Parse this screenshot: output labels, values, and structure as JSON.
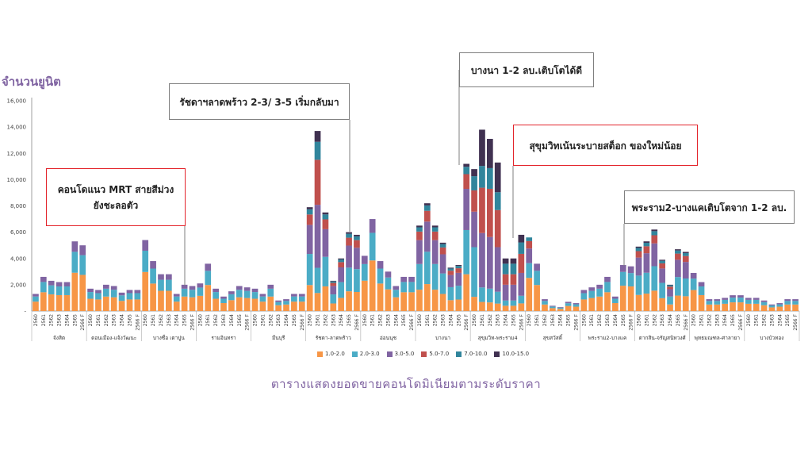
{
  "chart_data": {
    "type": "bar",
    "stacked": true,
    "title": "ตารางแสดงยอดขายคอนโดมิเนียมตามระดับราคา",
    "ylabel": "จำนวนยูนิต",
    "ylim": [
      0,
      16000
    ],
    "yticks": [
      "16,000",
      "14,000",
      "12,000",
      "10,000",
      "8,000",
      "6,000",
      "4,000",
      "2,000",
      "-"
    ],
    "years": [
      "2560",
      "2561",
      "2562",
      "2563",
      "2564",
      "2565",
      "2566 F"
    ],
    "locations": [
      {
        "name": "จังสิต",
        "totals": [
          1300,
          2600,
          2300,
          2200,
          2200,
          5300,
          5000
        ]
      },
      {
        "name": "ดอนเมือง-แจ้งวัฒนะ",
        "totals": [
          1700,
          1600,
          2000,
          1900,
          1400,
          1600,
          1600
        ]
      },
      {
        "name": "บางซื่อ เตาปูน",
        "totals": [
          5400,
          3800,
          2800,
          2800,
          1300,
          2000,
          1900
        ]
      },
      {
        "name": "รามอินทรา",
        "totals": [
          2100,
          3600,
          1700,
          1100,
          1500,
          1900,
          1800
        ]
      },
      {
        "name": "มีนบุรี",
        "totals": [
          1700,
          1300,
          2000,
          800,
          900,
          1300,
          1300
        ]
      },
      {
        "name": "รัชดา-ลาดพร้าว",
        "totals": [
          7900,
          13700,
          7500,
          2300,
          4000,
          6000,
          5800
        ]
      },
      {
        "name": "อ่อนนุช",
        "totals": [
          4200,
          7000,
          3800,
          3000,
          1900,
          2600,
          2600
        ]
      },
      {
        "name": "บางนา",
        "totals": [
          6500,
          8200,
          6500,
          5200,
          3300,
          3500,
          11200
        ]
      },
      {
        "name": "สุขุมวิท-พระราม4",
        "totals": [
          10800,
          13800,
          13100,
          11300,
          4000,
          4000,
          5800
        ]
      },
      {
        "name": "สุขสวัสดิ์",
        "totals": [
          5600,
          3600,
          900,
          400,
          300,
          700,
          600
        ]
      },
      {
        "name": "พระราม2-บางแค",
        "totals": [
          1600,
          1800,
          2000,
          2600,
          1100,
          3500,
          3400
        ]
      },
      {
        "name": "ตากสิน-จรัญสนิทวงศ์",
        "totals": [
          4900,
          5300,
          6200,
          3900,
          2000,
          4700,
          4500
        ]
      },
      {
        "name": "พุทธมณฑล-ศาลายา",
        "totals": [
          2900,
          2200,
          900,
          900,
          1000,
          1200,
          1200
        ]
      },
      {
        "name": "บางบัวทอง",
        "totals": [
          1000,
          1000,
          800,
          500,
          600,
          900,
          900
        ]
      }
    ],
    "series": [
      {
        "name": "1.0-2.0",
        "color": "#f79646"
      },
      {
        "name": "2.0-3.0",
        "color": "#4bacc6"
      },
      {
        "name": "3.0-5.0",
        "color": "#8064a2"
      },
      {
        "name": "5.0-7.0",
        "color": "#c0504d"
      },
      {
        "name": "7.0-10.0",
        "color": "#31859c"
      },
      {
        "name": "10.0-15.0",
        "color": "#403151"
      }
    ],
    "annotations": [
      {
        "text": "คอนโดแนว MRT สายสีม่วง\nยังชะลอตัว",
        "style": "red"
      },
      {
        "text": "รัชดาฯลาดพร้าว 2-3/ 3-5 เริ่มกลับมา",
        "style": "gray"
      },
      {
        "text": "บางนา 1-2 ลบ.เติบโตได้ดี",
        "style": "gray"
      },
      {
        "text": "สุขุมวิทเน้นระบายสต็อก ของใหม่น้อย",
        "style": "red"
      },
      {
        "text": "พระราม2-บางแคเติบโตจาก 1-2 ลบ.",
        "style": "gray"
      }
    ]
  }
}
